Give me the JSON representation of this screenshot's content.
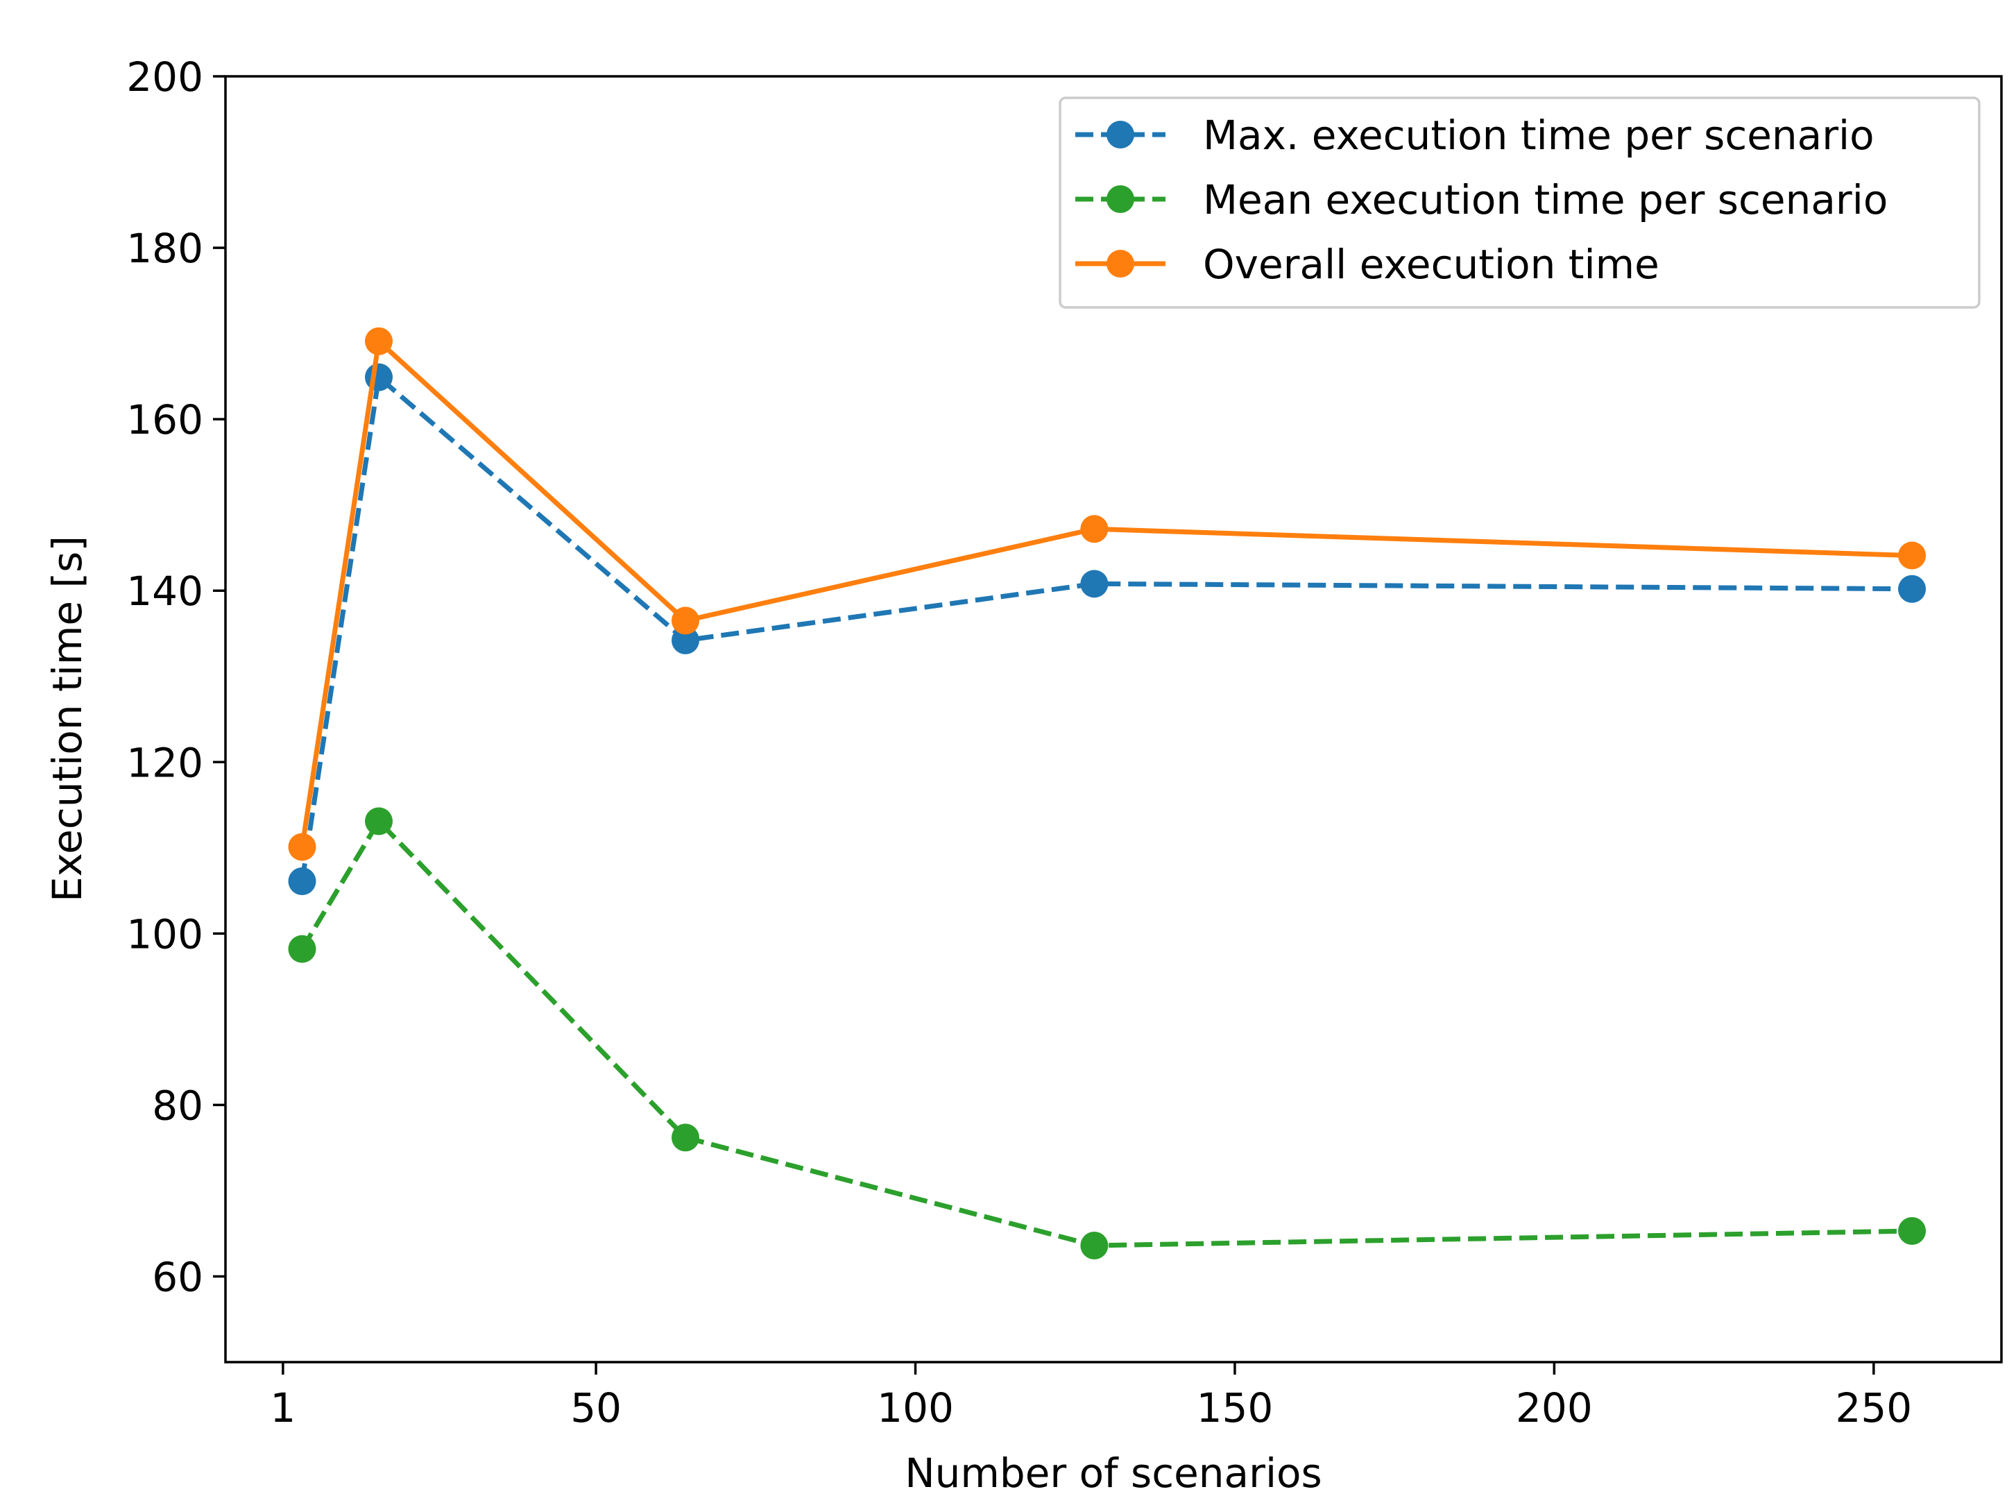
{
  "chart_data": {
    "type": "line",
    "xlabel": "Number of scenarios",
    "ylabel": "Execution time [s]",
    "xlim": [
      -8,
      270
    ],
    "ylim": [
      50,
      200
    ],
    "xticks": [
      1,
      50,
      100,
      150,
      200,
      250
    ],
    "yticks": [
      60,
      80,
      100,
      120,
      140,
      160,
      180,
      200
    ],
    "x": [
      4,
      16,
      64,
      128,
      256
    ],
    "grid": false,
    "legend_position": "top-right",
    "series": [
      {
        "name": "Max. execution time per scenario",
        "values": [
          106.1,
          164.9,
          134.2,
          140.8,
          140.2
        ],
        "color": "#1f77b4",
        "line_style": "dashed",
        "marker": "circle"
      },
      {
        "name": "Mean execution time per scenario",
        "values": [
          98.2,
          113.1,
          76.2,
          63.6,
          65.3
        ],
        "color": "#2ca02c",
        "line_style": "dashed",
        "marker": "circle"
      },
      {
        "name": "Overall execution time",
        "values": [
          110.1,
          169.1,
          136.5,
          147.2,
          144.1
        ],
        "color": "#ff7f0e",
        "line_style": "solid",
        "marker": "circle"
      }
    ]
  }
}
